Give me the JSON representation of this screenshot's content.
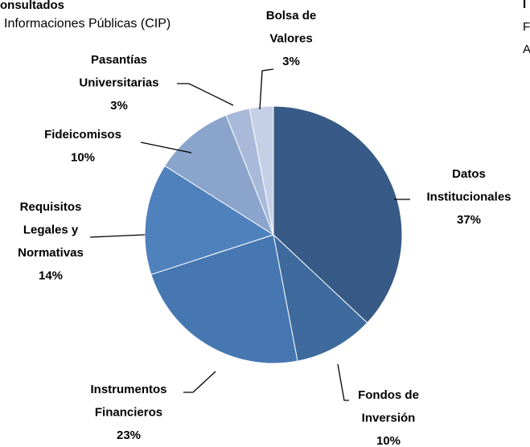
{
  "chart_data": {
    "type": "pie",
    "title": "onsultados",
    "subtitle": "Informaciones Públicas (CIP)",
    "annotations": [
      "I",
      "F",
      "A"
    ],
    "categories": [
      [
        "Datos",
        "Institucionales"
      ],
      [
        "Fondos de",
        "Inversión"
      ],
      [
        "Instrumentos",
        "Financieros"
      ],
      [
        "Requisitos",
        "Legales y",
        "Normativas"
      ],
      [
        "Fideicomisos"
      ],
      [
        "Pasantías",
        "Universitarias"
      ],
      [
        "Bolsa de",
        "Valores"
      ]
    ],
    "values": [
      37,
      10,
      23,
      14,
      10,
      3,
      3
    ],
    "value_labels": [
      "37%",
      "10%",
      "23%",
      "14%",
      "10%",
      "3%",
      "3%"
    ],
    "colors": [
      "#375a87",
      "#3e6a9d",
      "#4677b1",
      "#4f81bd",
      "#8aa4cc",
      "#a8b9d9",
      "#c5d0e6"
    ]
  }
}
